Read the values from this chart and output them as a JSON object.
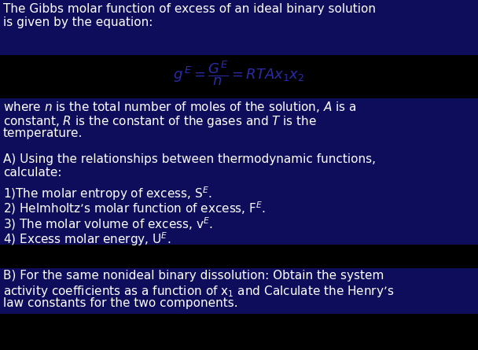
{
  "bg_color": "#000000",
  "text_color": "#ffffff",
  "highlight_color": "#0d0d5c",
  "equation_color": "#2b2baa",
  "font_size": 11.0,
  "eq_font_size": 13,
  "title_line1": "The Gibbs molar function of excess of an ideal binary solution",
  "title_line2": "is given by the equation:",
  "where_line1": "where $\\it{n}$ is the total number of moles of the solution, $\\it{A}$ is a",
  "where_line2": "constant, $\\it{R}$ is the constant of the gases and $\\it{T}$ is the",
  "where_line3": "temperature.",
  "sA_line1": "A) Using the relationships between thermodynamic functions,",
  "sA_line2": "calculate:",
  "item1": "1)The molar entropy of excess, S$^E$.",
  "item2": "2) Helmholtz’s molar function of excess, F$^E$.",
  "item3": "3) The molar volume of excess, v$^E$.",
  "item4": "4) Excess molar energy, U$^E$.",
  "sB_line1": "B) For the same nonideal binary dissolution: Obtain the system",
  "sB_line2": "activity coefficients as a function of x$_1$ and Calculate the Henry’s",
  "sB_line3": "law constants for the two components."
}
